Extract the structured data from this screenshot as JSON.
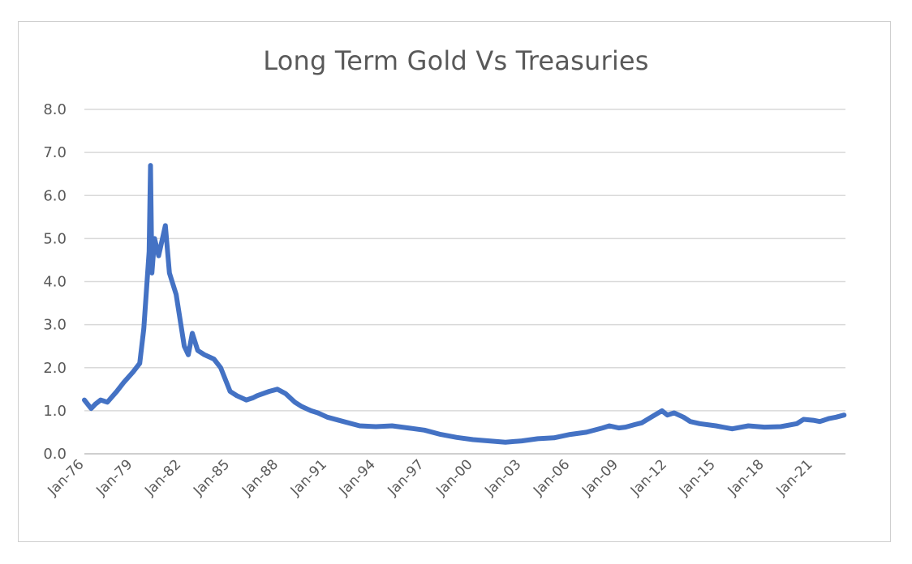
{
  "chart_data": {
    "type": "line",
    "title": "Long Term Gold Vs Treasuries",
    "xlabel": "",
    "ylabel": "",
    "ylim": [
      0,
      8
    ],
    "xlim": [
      "1976-01",
      "2023-01"
    ],
    "y_ticks": [
      "0.0",
      "1.0",
      "2.0",
      "3.0",
      "4.0",
      "5.0",
      "6.0",
      "7.0",
      "8.0"
    ],
    "x_ticks": [
      "Jan-76",
      "Jan-79",
      "Jan-82",
      "Jan-85",
      "Jan-88",
      "Jan-91",
      "Jan-94",
      "Jan-97",
      "Jan-00",
      "Jan-03",
      "Jan-06",
      "Jan-09",
      "Jan-12",
      "Jan-15",
      "Jan-18",
      "Jan-21"
    ],
    "grid": "horizontal",
    "legend": "none",
    "line_color": "#4472c4",
    "series": [
      {
        "x": [
          "1976-01",
          "1976-06",
          "1976-09",
          "1977-01",
          "1977-06",
          "1978-01",
          "1978-06",
          "1979-01",
          "1979-06",
          "1979-09",
          "1980-01",
          "1980-02",
          "1980-03",
          "1980-05",
          "1980-08",
          "1981-01",
          "1981-04",
          "1981-09",
          "1982-03",
          "1982-06",
          "1982-09",
          "1983-01",
          "1983-06",
          "1984-01",
          "1984-06",
          "1985-01",
          "1985-06",
          "1986-01",
          "1986-06",
          "1986-09",
          "1987-06",
          "1987-12",
          "1988-06",
          "1989-01",
          "1989-06",
          "1990-01",
          "1990-06",
          "1991-01",
          "1992-01",
          "1993-01",
          "1994-01",
          "1995-01",
          "1996-01",
          "1997-01",
          "1998-01",
          "1999-01",
          "2000-01",
          "2001-01",
          "2002-01",
          "2003-01",
          "2004-01",
          "2005-01",
          "2006-01",
          "2007-01",
          "2008-01",
          "2008-06",
          "2009-01",
          "2009-06",
          "2010-01",
          "2010-06",
          "2011-01",
          "2011-09",
          "2012-01",
          "2012-06",
          "2013-01",
          "2013-06",
          "2014-01",
          "2015-01",
          "2016-01",
          "2017-01",
          "2018-01",
          "2019-01",
          "2020-01",
          "2020-06",
          "2021-01",
          "2021-06",
          "2022-01",
          "2022-06",
          "2022-12"
        ],
        "y": [
          1.25,
          1.05,
          1.15,
          1.25,
          1.2,
          1.45,
          1.65,
          1.9,
          2.1,
          2.9,
          4.7,
          6.7,
          4.2,
          5.0,
          4.6,
          5.3,
          4.2,
          3.7,
          2.5,
          2.3,
          2.8,
          2.4,
          2.3,
          2.2,
          2.0,
          1.45,
          1.35,
          1.25,
          1.3,
          1.35,
          1.45,
          1.5,
          1.4,
          1.2,
          1.1,
          1.0,
          0.95,
          0.85,
          0.75,
          0.65,
          0.63,
          0.65,
          0.6,
          0.55,
          0.45,
          0.38,
          0.33,
          0.3,
          0.27,
          0.3,
          0.35,
          0.37,
          0.45,
          0.5,
          0.6,
          0.65,
          0.6,
          0.62,
          0.68,
          0.72,
          0.85,
          1.0,
          0.9,
          0.95,
          0.85,
          0.75,
          0.7,
          0.65,
          0.58,
          0.65,
          0.62,
          0.63,
          0.7,
          0.8,
          0.78,
          0.75,
          0.82,
          0.85,
          0.9
        ]
      }
    ]
  }
}
